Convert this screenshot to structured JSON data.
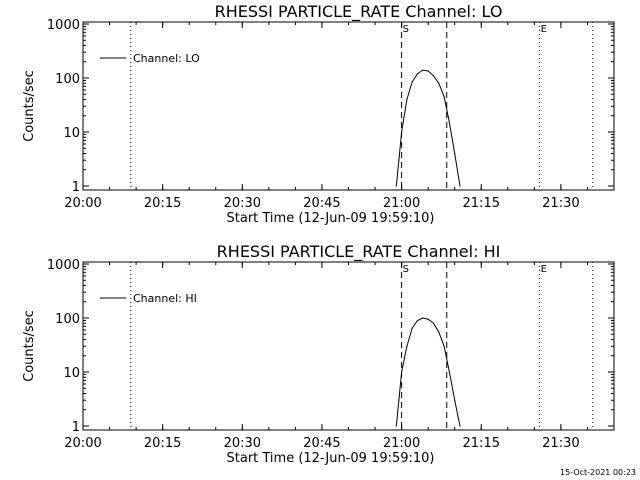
{
  "chart_data": [
    {
      "type": "line",
      "title": "RHESSI PARTICLE_RATE Channel: LO",
      "xlabel": "Start Time (12-Jun-09 19:59:10)",
      "ylabel": "Counts/sec",
      "yscale": "log",
      "ylim": [
        1,
        1000
      ],
      "xlim": [
        "20:00",
        "21:40"
      ],
      "x_ticks": [
        "20:00",
        "20:15",
        "20:30",
        "20:45",
        "21:00",
        "21:15",
        "21:30"
      ],
      "y_ticks": [
        "1",
        "10",
        "100",
        "1000"
      ],
      "legend": "top-left",
      "series": [
        {
          "name": "Channel: LO",
          "x": [
            "20:59",
            "20:59:30",
            "21:00",
            "21:01",
            "21:02",
            "21:03",
            "21:04",
            "21:05",
            "21:06",
            "21:07",
            "21:08",
            "21:09",
            "21:10",
            "21:11"
          ],
          "values": [
            1,
            3,
            10,
            40,
            85,
            120,
            140,
            135,
            110,
            80,
            45,
            15,
            4,
            1
          ]
        }
      ],
      "vertical_lines": [
        {
          "time": "20:09",
          "style": "dotted",
          "label": ""
        },
        {
          "time": "21:00",
          "style": "dashed",
          "label": "S"
        },
        {
          "time": "21:08:30",
          "style": "dashed",
          "label": ""
        },
        {
          "time": "21:26",
          "style": "dotted",
          "label": "E"
        },
        {
          "time": "21:36",
          "style": "dotted",
          "label": ""
        }
      ]
    },
    {
      "type": "line",
      "title": "RHESSI PARTICLE_RATE Channel: HI",
      "xlabel": "Start Time (12-Jun-09 19:59:10)",
      "ylabel": "Counts/sec",
      "yscale": "log",
      "ylim": [
        1,
        1000
      ],
      "xlim": [
        "20:00",
        "21:40"
      ],
      "x_ticks": [
        "20:00",
        "20:15",
        "20:30",
        "20:45",
        "21:00",
        "21:15",
        "21:30"
      ],
      "y_ticks": [
        "1",
        "10",
        "100",
        "1000"
      ],
      "legend": "top-left",
      "series": [
        {
          "name": "Channel: HI",
          "x": [
            "20:59",
            "20:59:30",
            "21:00",
            "21:01",
            "21:02",
            "21:03",
            "21:04",
            "21:05",
            "21:06",
            "21:07",
            "21:08",
            "21:09",
            "21:10",
            "21:11"
          ],
          "values": [
            1,
            3,
            10,
            30,
            65,
            90,
            100,
            95,
            80,
            55,
            30,
            10,
            3,
            1
          ]
        }
      ],
      "vertical_lines": [
        {
          "time": "20:09",
          "style": "dotted",
          "label": ""
        },
        {
          "time": "21:00",
          "style": "dashed",
          "label": "S"
        },
        {
          "time": "21:08:30",
          "style": "dashed",
          "label": ""
        },
        {
          "time": "21:26",
          "style": "dotted",
          "label": "E"
        },
        {
          "time": "21:36",
          "style": "dotted",
          "label": ""
        }
      ]
    }
  ],
  "footer": {
    "timestamp": "15-Oct-2021 00:23"
  }
}
